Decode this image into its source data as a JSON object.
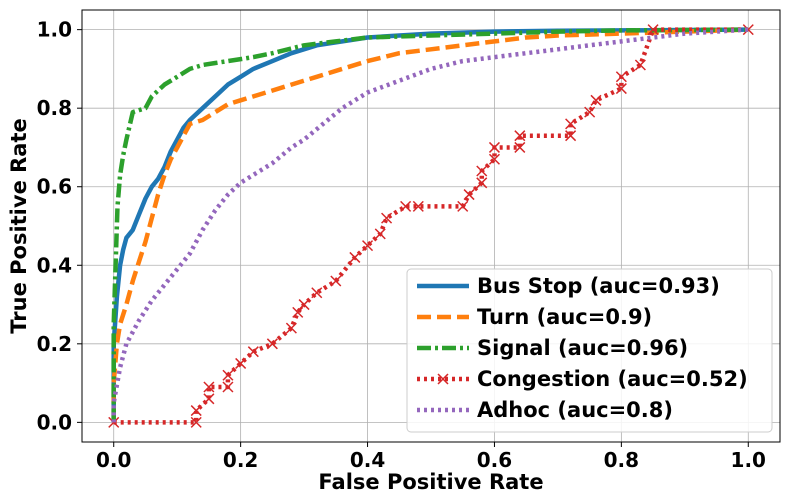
{
  "chart_data": {
    "type": "line",
    "xlabel": "False Positive Rate",
    "ylabel": "True Positive Rate",
    "xlim": [
      -0.05,
      1.05
    ],
    "ylim": [
      -0.05,
      1.05
    ],
    "xticks": [
      "0.0",
      "0.2",
      "0.4",
      "0.6",
      "0.8",
      "1.0"
    ],
    "yticks": [
      "0.0",
      "0.2",
      "0.4",
      "0.6",
      "0.8",
      "1.0"
    ],
    "grid": true,
    "legend_position": "bottom-right",
    "series": [
      {
        "name": "Bus Stop (auc=0.93)",
        "color": "#1f77b4",
        "style": "solid",
        "x": [
          0,
          0.0,
          0.005,
          0.01,
          0.015,
          0.02,
          0.03,
          0.04,
          0.05,
          0.06,
          0.07,
          0.08,
          0.09,
          0.1,
          0.11,
          0.12,
          0.14,
          0.16,
          0.18,
          0.2,
          0.22,
          0.25,
          0.28,
          0.32,
          0.36,
          0.4,
          0.45,
          0.5,
          0.6,
          0.7,
          0.8,
          0.9,
          1.0
        ],
        "y": [
          0,
          0.2,
          0.32,
          0.4,
          0.44,
          0.47,
          0.49,
          0.53,
          0.57,
          0.6,
          0.62,
          0.65,
          0.69,
          0.72,
          0.75,
          0.77,
          0.8,
          0.83,
          0.86,
          0.88,
          0.9,
          0.92,
          0.94,
          0.96,
          0.97,
          0.98,
          0.985,
          0.99,
          0.995,
          0.997,
          0.998,
          0.999,
          1.0
        ]
      },
      {
        "name": "Turn (auc=0.9)",
        "color": "#ff7f0e",
        "style": "dashed",
        "x": [
          0,
          0.0,
          0.005,
          0.01,
          0.02,
          0.03,
          0.04,
          0.05,
          0.06,
          0.07,
          0.08,
          0.09,
          0.1,
          0.11,
          0.12,
          0.14,
          0.16,
          0.18,
          0.2,
          0.24,
          0.28,
          0.32,
          0.36,
          0.4,
          0.45,
          0.5,
          0.55,
          0.6,
          0.65,
          0.7,
          0.8,
          0.9,
          1.0
        ],
        "y": [
          0,
          0.1,
          0.2,
          0.25,
          0.3,
          0.36,
          0.41,
          0.46,
          0.52,
          0.58,
          0.63,
          0.67,
          0.7,
          0.73,
          0.76,
          0.77,
          0.79,
          0.81,
          0.82,
          0.84,
          0.86,
          0.88,
          0.9,
          0.92,
          0.94,
          0.95,
          0.96,
          0.97,
          0.98,
          0.985,
          0.99,
          0.995,
          1.0
        ]
      },
      {
        "name": "Signal (auc=0.96)",
        "color": "#2ca02c",
        "style": "dashdot",
        "x": [
          0,
          0.0,
          0.003,
          0.006,
          0.01,
          0.015,
          0.02,
          0.03,
          0.05,
          0.06,
          0.08,
          0.1,
          0.12,
          0.14,
          0.16,
          0.18,
          0.22,
          0.25,
          0.3,
          0.35,
          0.4,
          0.5,
          0.6,
          0.7,
          0.8,
          0.9,
          1.0
        ],
        "y": [
          0,
          0.25,
          0.4,
          0.55,
          0.63,
          0.68,
          0.72,
          0.79,
          0.8,
          0.83,
          0.86,
          0.88,
          0.9,
          0.91,
          0.915,
          0.92,
          0.93,
          0.94,
          0.96,
          0.97,
          0.98,
          0.985,
          0.99,
          0.995,
          0.998,
          0.999,
          1.0
        ]
      },
      {
        "name": "Congestion (auc=0.52)",
        "color": "#d62728",
        "style": "dotted",
        "markers": true,
        "x": [
          0,
          0.13,
          0.13,
          0.15,
          0.15,
          0.18,
          0.18,
          0.2,
          0.22,
          0.25,
          0.28,
          0.29,
          0.3,
          0.32,
          0.35,
          0.38,
          0.4,
          0.42,
          0.43,
          0.46,
          0.48,
          0.55,
          0.56,
          0.58,
          0.58,
          0.6,
          0.6,
          0.64,
          0.64,
          0.72,
          0.72,
          0.75,
          0.76,
          0.8,
          0.8,
          0.83,
          0.85,
          1.0
        ],
        "y": [
          0,
          0,
          0.03,
          0.06,
          0.09,
          0.09,
          0.12,
          0.15,
          0.18,
          0.2,
          0.24,
          0.28,
          0.3,
          0.33,
          0.36,
          0.42,
          0.45,
          0.48,
          0.52,
          0.55,
          0.55,
          0.55,
          0.58,
          0.61,
          0.64,
          0.67,
          0.7,
          0.7,
          0.73,
          0.73,
          0.76,
          0.79,
          0.82,
          0.85,
          0.88,
          0.91,
          1.0,
          1.0
        ]
      },
      {
        "name": "Adhoc (auc=0.8)",
        "color": "#9467bd",
        "style": "dotted",
        "x": [
          0,
          0.0,
          0.01,
          0.02,
          0.04,
          0.06,
          0.08,
          0.1,
          0.12,
          0.14,
          0.16,
          0.18,
          0.2,
          0.22,
          0.25,
          0.28,
          0.3,
          0.33,
          0.36,
          0.4,
          0.45,
          0.5,
          0.55,
          0.6,
          0.65,
          0.7,
          0.75,
          0.8,
          0.85,
          0.9,
          1.0
        ],
        "y": [
          0,
          0.05,
          0.14,
          0.2,
          0.26,
          0.31,
          0.35,
          0.39,
          0.43,
          0.49,
          0.54,
          0.58,
          0.61,
          0.63,
          0.66,
          0.7,
          0.72,
          0.76,
          0.8,
          0.84,
          0.87,
          0.9,
          0.92,
          0.93,
          0.94,
          0.95,
          0.96,
          0.97,
          0.98,
          0.99,
          1.0
        ]
      }
    ]
  }
}
